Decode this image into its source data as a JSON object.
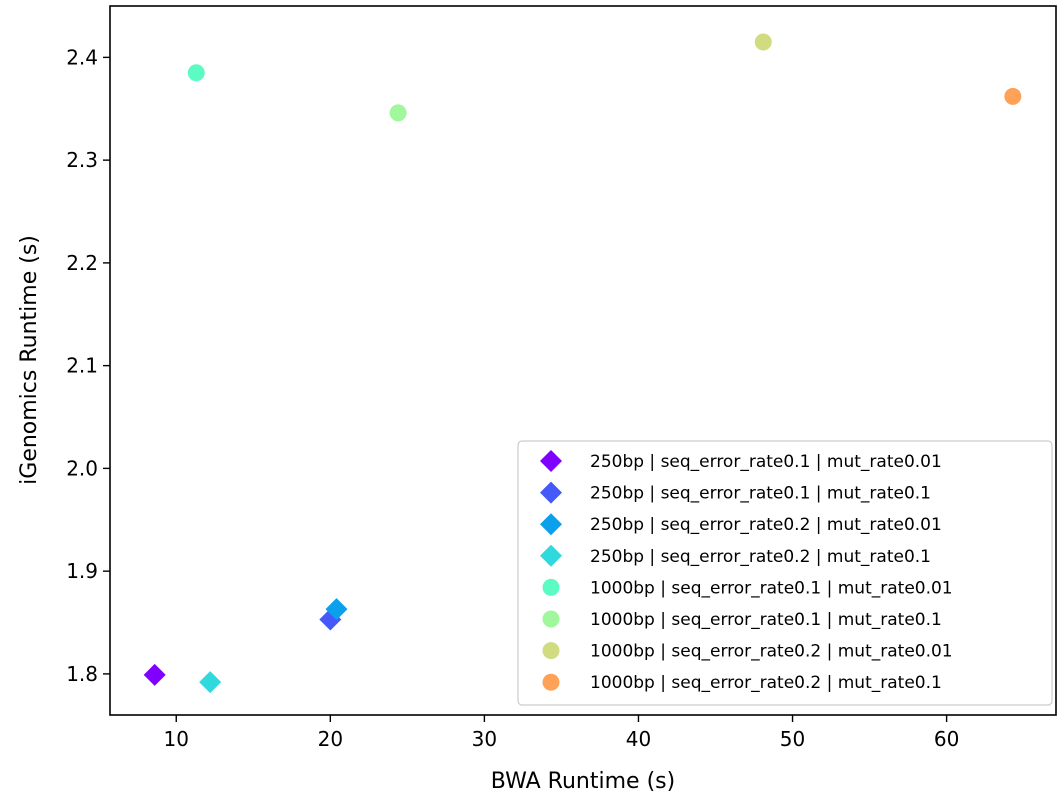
{
  "chart_data": {
    "type": "scatter",
    "title": "",
    "xlabel": "BWA Runtime (s)",
    "ylabel": "iGenomics Runtime (s)",
    "xlim": [
      5.7,
      67.1
    ],
    "ylim": [
      1.76,
      2.45
    ],
    "x_ticks": [
      "10",
      "20",
      "30",
      "40",
      "50",
      "60"
    ],
    "y_ticks": [
      "1.8",
      "1.9",
      "2.0",
      "2.1",
      "2.2",
      "2.3",
      "2.4"
    ],
    "grid": false,
    "legend_position": "lower-right",
    "series": [
      {
        "name": "250bp | seq_error_rate0.1 | mut_rate0.01",
        "marker": "diamond",
        "color": "#8000ff",
        "points": [
          {
            "x": 8.6,
            "y": 1.799
          }
        ]
      },
      {
        "name": "250bp | seq_error_rate0.1 | mut_rate0.1",
        "marker": "diamond",
        "color": "#4559f9",
        "points": [
          {
            "x": 20.0,
            "y": 1.853
          }
        ]
      },
      {
        "name": "250bp | seq_error_rate0.2 | mut_rate0.01",
        "marker": "diamond",
        "color": "#0aa0ec",
        "points": [
          {
            "x": 20.4,
            "y": 1.863
          }
        ]
      },
      {
        "name": "250bp | seq_error_rate0.2 | mut_rate0.1",
        "marker": "diamond",
        "color": "#30d9dc",
        "points": [
          {
            "x": 12.2,
            "y": 1.792
          }
        ]
      },
      {
        "name": "1000bp | seq_error_rate0.1 | mut_rate0.01",
        "marker": "circle",
        "color": "#5cfbc4",
        "points": [
          {
            "x": 11.3,
            "y": 2.385
          }
        ]
      },
      {
        "name": "1000bp | seq_error_rate0.1 | mut_rate0.1",
        "marker": "circle",
        "color": "#a0f79c",
        "points": [
          {
            "x": 24.4,
            "y": 2.346
          }
        ]
      },
      {
        "name": "1000bp | seq_error_rate0.2 | mut_rate0.01",
        "marker": "circle",
        "color": "#d1dc81",
        "points": [
          {
            "x": 48.1,
            "y": 2.415
          }
        ]
      },
      {
        "name": "1000bp | seq_error_rate0.2 | mut_rate0.1",
        "marker": "circle",
        "color": "#ffa157",
        "points": [
          {
            "x": 64.3,
            "y": 2.362
          }
        ]
      }
    ]
  }
}
